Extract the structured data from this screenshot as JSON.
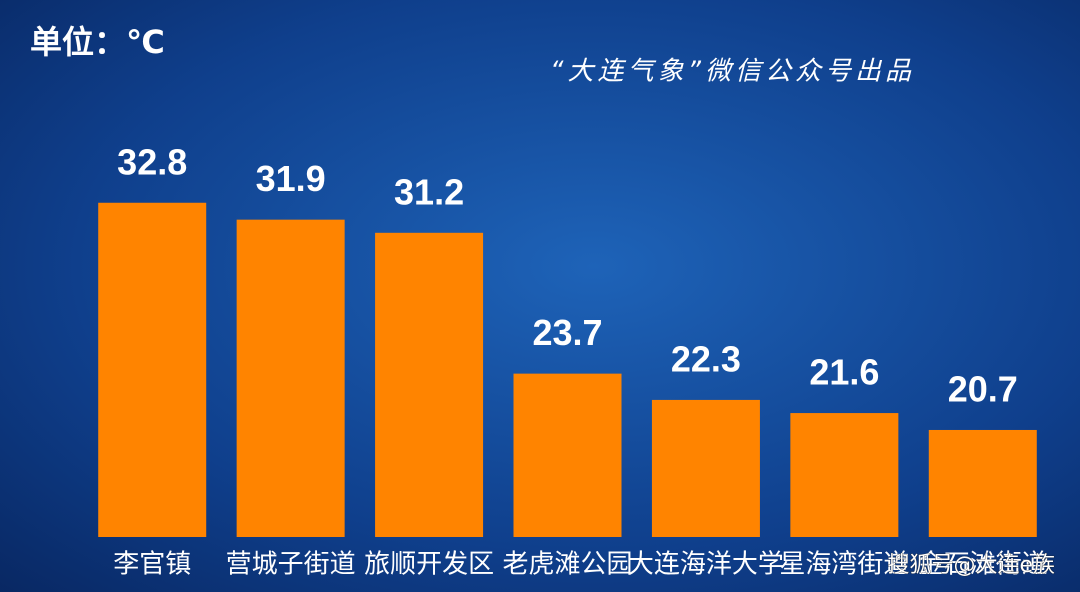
{
  "chart_data": {
    "type": "bar",
    "unit_label": "单位：℃",
    "source": "“大连气象”微信公众号出品",
    "watermark": "搜狐号@大连e族",
    "categories": [
      "李官镇",
      "营城子街道",
      "旅顺开发区",
      "老虎滩公园",
      "大连海洋大学",
      "星海湾街道",
      "金石滩街道"
    ],
    "values": [
      32.8,
      31.9,
      31.2,
      23.7,
      22.3,
      21.6,
      20.7
    ],
    "color": "#ff8400",
    "ylim": [
      15,
      33
    ]
  }
}
